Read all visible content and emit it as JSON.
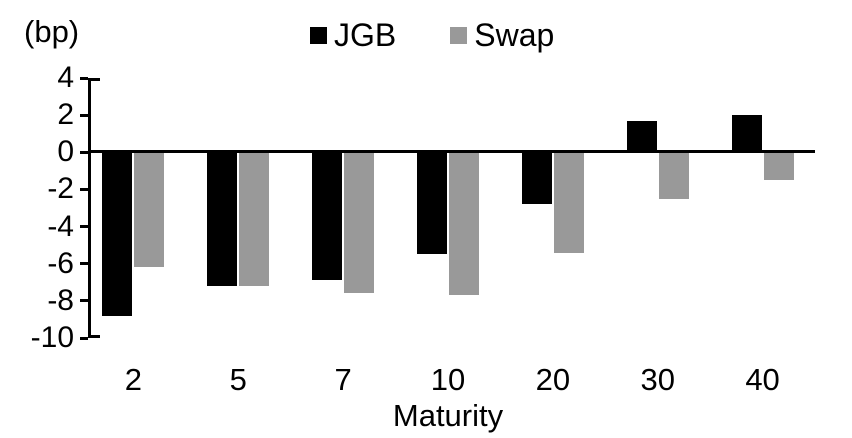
{
  "chart_data": {
    "type": "bar",
    "title": "",
    "ylabel": "(bp)",
    "xlabel": "Maturity",
    "categories": [
      "2",
      "5",
      "7",
      "10",
      "20",
      "30",
      "40"
    ],
    "series": [
      {
        "name": "JGB",
        "color": "#000000",
        "values": [
          -8.8,
          -7.2,
          -6.9,
          -5.5,
          -2.8,
          1.7,
          2.0
        ]
      },
      {
        "name": "Swap",
        "color": "#999999",
        "values": [
          -6.2,
          -7.2,
          -7.6,
          -7.7,
          -5.4,
          -2.5,
          -1.5
        ]
      }
    ],
    "ylim": [
      -10,
      4
    ],
    "yticks": [
      4,
      2,
      0,
      -2,
      -4,
      -6,
      -8,
      -10
    ],
    "grid": false,
    "legend_position": "top-center",
    "background_color": "#ffffff",
    "axis_color": "#000000"
  }
}
